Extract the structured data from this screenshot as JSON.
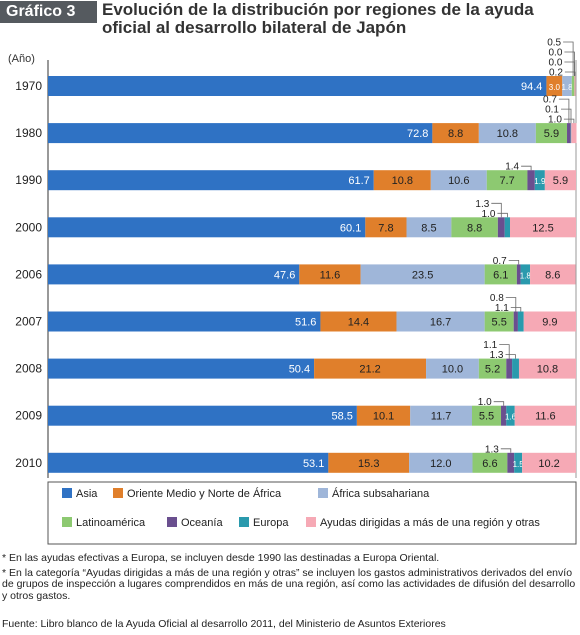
{
  "header": {
    "badge": "Gráfico 3",
    "title": "Evolución de la distribución por regiones de la ayuda oficial al desarrollo bilateral de Japón"
  },
  "chart_data": {
    "type": "bar",
    "orientation": "horizontal-stacked-percent",
    "categories": [
      "1970",
      "1980",
      "1990",
      "2000",
      "2006",
      "2007",
      "2008",
      "2009",
      "2010"
    ],
    "category_axis_label": "(Año)",
    "legend_position": "bottom",
    "series": [
      {
        "name": "Asia",
        "color": "#2f72c4",
        "values": [
          94.4,
          72.8,
          61.7,
          60.1,
          47.6,
          51.6,
          50.4,
          58.5,
          53.1
        ],
        "labels": [
          "94.4",
          "72.8",
          "61.7",
          "60.1",
          "47.6",
          "51.6",
          "50.4",
          "58.5",
          "53.1"
        ]
      },
      {
        "name": "Oriente Medio y Norte de África",
        "color": "#e07f2b",
        "values": [
          3.0,
          8.8,
          10.8,
          7.8,
          11.6,
          14.4,
          21.2,
          10.1,
          15.3
        ],
        "labels": [
          "3.0",
          "8.8",
          "10.8",
          "7.8",
          "11.6",
          "14.4",
          "21.2",
          "10.1",
          "15.3"
        ]
      },
      {
        "name": "África subsahariana",
        "color": "#9fb6d9",
        "values": [
          1.8,
          10.8,
          10.6,
          8.5,
          23.5,
          16.7,
          10.0,
          11.7,
          12.0
        ],
        "labels": [
          "1.8",
          "10.8",
          "10.6",
          "8.5",
          "23.5",
          "16.7",
          "10.0",
          "11.7",
          "12.0"
        ]
      },
      {
        "name": "Latinoamérica",
        "color": "#8dc971",
        "values": [
          0.5,
          5.9,
          7.7,
          8.8,
          6.1,
          5.5,
          5.2,
          5.5,
          6.6
        ],
        "labels": [
          "0.5",
          "5.9",
          "7.7",
          "8.8",
          "6.1",
          "5.5",
          "5.2",
          "5.5",
          "6.6"
        ]
      },
      {
        "name": "Oceanía",
        "color": "#6a4f8f",
        "values": [
          0.0,
          0.7,
          1.4,
          1.3,
          0.7,
          0.8,
          1.1,
          1.0,
          1.3
        ],
        "labels": [
          "0.0",
          "0.7",
          "1.4",
          "1.3",
          "0.7",
          "0.8",
          "1.1",
          "1.0",
          "1.3"
        ]
      },
      {
        "name": "Europa",
        "color": "#2a9aad",
        "values": [
          0.0,
          0.1,
          1.9,
          1.0,
          1.8,
          1.1,
          1.3,
          1.6,
          1.5
        ],
        "labels": [
          "0.0",
          "0.1",
          "1.9",
          "1.0",
          "1.8",
          "1.1",
          "1.3",
          "1.6",
          "1.5"
        ]
      },
      {
        "name": "Ayudas dirigidas a más de una región y otras",
        "color": "#f6a9b5",
        "values": [
          0.2,
          1.0,
          5.9,
          12.5,
          8.6,
          9.9,
          10.8,
          11.6,
          10.2
        ],
        "labels": [
          "0.2",
          "1.0",
          "5.9",
          "12.5",
          "8.6",
          "9.9",
          "10.8",
          "11.6",
          "10.2"
        ]
      }
    ]
  },
  "notes": [
    "* En las ayudas efectivas a Europa, se incluyen desde 1990 las destinadas a Europa Oriental.",
    "* En la categoría “Ayudas dirigidas a más de una región y otras” se incluyen los gastos administrativos derivados del envío de grupos de inspección a lugares comprendidos en más de una región, así como las actividades de difusión del desarrollo y otros gastos."
  ],
  "source": "Fuente: Libro blanco de la Ayuda Oficial al desarrollo 2011, del Ministerio de Asuntos Exteriores"
}
